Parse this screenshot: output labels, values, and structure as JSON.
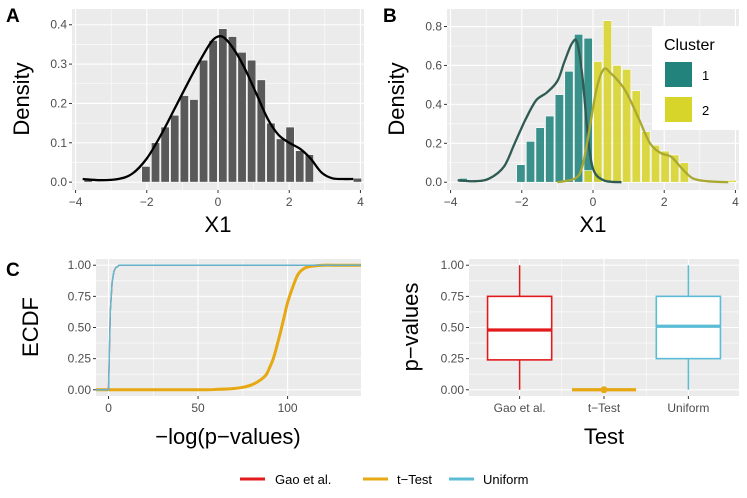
{
  "panels": {
    "A": {
      "tag": "A"
    },
    "B": {
      "tag": "B"
    },
    "C": {
      "tag": "C"
    }
  },
  "colors": {
    "grey_bar": "#595959",
    "teal": "#21837c",
    "yellow": "#d7d42a",
    "dark_teal_line": "#2f5b52",
    "olive_line": "#a9a931",
    "gao": "#e31a1c",
    "ttest": "#e6a813",
    "uniform": "#5bbcd6"
  },
  "chart_data": [
    {
      "id": "A",
      "type": "bar",
      "xlabel": "X1",
      "ylabel": "Density",
      "xlim": [
        -4.1,
        4.1
      ],
      "ylim": [
        -0.02,
        0.44
      ],
      "xticks": [
        -4,
        -2,
        0,
        2,
        4
      ],
      "xtick_labels": [
        "−4",
        "−2",
        "0",
        "2",
        "4"
      ],
      "yticks": [
        0.0,
        0.1,
        0.2,
        0.3,
        0.4
      ],
      "ytick_labels": [
        "0.0",
        "0.1",
        "0.2",
        "0.3",
        "0.4"
      ],
      "bin_width": 0.27,
      "bins": [
        -3.78,
        -2.16,
        -1.89,
        -1.62,
        -1.35,
        -1.08,
        -0.81,
        -0.54,
        -0.27,
        0.0,
        0.27,
        0.54,
        0.81,
        1.08,
        1.35,
        1.62,
        1.89,
        2.16,
        2.43,
        3.78
      ],
      "values": [
        0.01,
        0.04,
        0.1,
        0.14,
        0.17,
        0.22,
        0.21,
        0.31,
        0.36,
        0.39,
        0.37,
        0.33,
        0.31,
        0.26,
        0.15,
        0.11,
        0.14,
        0.08,
        0.07,
        0.01
      ],
      "density_x": [
        -3.8,
        -3.3,
        -2.8,
        -2.4,
        -2.0,
        -1.6,
        -1.2,
        -0.8,
        -0.5,
        -0.2,
        0.0,
        0.2,
        0.5,
        0.8,
        1.1,
        1.4,
        1.7,
        2.0,
        2.3,
        2.6,
        2.9,
        3.2,
        3.5,
        3.8
      ],
      "density_y": [
        0.008,
        0.005,
        0.008,
        0.022,
        0.06,
        0.12,
        0.19,
        0.26,
        0.31,
        0.355,
        0.37,
        0.365,
        0.33,
        0.28,
        0.22,
        0.16,
        0.12,
        0.1,
        0.085,
        0.06,
        0.025,
        0.01,
        0.008,
        0.008
      ]
    },
    {
      "id": "B",
      "type": "bar",
      "xlabel": "X1",
      "ylabel": "Density",
      "xlim": [
        -4.1,
        4.1
      ],
      "ylim": [
        -0.04,
        0.89
      ],
      "xticks": [
        -4,
        -2,
        0,
        2,
        4
      ],
      "xtick_labels": [
        "−4",
        "−2",
        "0",
        "2",
        "4"
      ],
      "yticks": [
        0.0,
        0.2,
        0.4,
        0.6,
        0.8
      ],
      "ytick_labels": [
        "0.0",
        "0.2",
        "0.4",
        "0.6",
        "0.8"
      ],
      "legend": {
        "title": "Cluster",
        "entries": [
          "1",
          "2"
        ],
        "position": "right"
      },
      "series": [
        {
          "name": "1",
          "bin_width": 0.27,
          "bins": [
            -3.78,
            -2.16,
            -1.89,
            -1.62,
            -1.35,
            -1.08,
            -0.81,
            -0.54,
            -0.27,
            0.0
          ],
          "values": [
            0.02,
            0.09,
            0.21,
            0.28,
            0.34,
            0.45,
            0.57,
            0.76,
            0.74,
            0.05
          ],
          "density_x": [
            -3.8,
            -3.3,
            -2.9,
            -2.5,
            -2.2,
            -1.9,
            -1.6,
            -1.3,
            -1.0,
            -0.8,
            -0.6,
            -0.45,
            -0.3,
            -0.15,
            0.0,
            0.3,
            0.8
          ],
          "density_y": [
            0.01,
            0.005,
            0.02,
            0.08,
            0.2,
            0.32,
            0.42,
            0.46,
            0.52,
            0.62,
            0.71,
            0.72,
            0.55,
            0.25,
            0.07,
            0.01,
            0.0
          ]
        },
        {
          "name": "2",
          "bin_width": 0.27,
          "bins": [
            -0.27,
            0.0,
            0.27,
            0.54,
            0.81,
            1.08,
            1.35,
            1.62,
            1.89,
            2.16,
            2.43,
            3.78
          ],
          "values": [
            0.06,
            0.62,
            0.83,
            0.6,
            0.58,
            0.47,
            0.26,
            0.19,
            0.16,
            0.14,
            0.1,
            0.01
          ],
          "density_x": [
            -1.0,
            -0.5,
            -0.3,
            -0.1,
            0.1,
            0.3,
            0.5,
            0.8,
            1.0,
            1.3,
            1.6,
            1.9,
            2.2,
            2.5,
            2.8,
            3.2,
            3.8
          ],
          "density_y": [
            0.0,
            0.02,
            0.08,
            0.27,
            0.48,
            0.58,
            0.56,
            0.5,
            0.44,
            0.32,
            0.2,
            0.15,
            0.13,
            0.07,
            0.02,
            0.005,
            0.0
          ]
        }
      ]
    },
    {
      "id": "C",
      "type": "line",
      "xlabel": "−log(p−values)",
      "ylabel": "ECDF",
      "xlim": [
        -7,
        141
      ],
      "ylim": [
        -0.05,
        1.05
      ],
      "xticks": [
        0,
        50,
        100
      ],
      "xtick_labels": [
        "0",
        "50",
        "100"
      ],
      "yticks": [
        0.0,
        0.25,
        0.5,
        0.75,
        1.0
      ],
      "ytick_labels": [
        "0.00",
        "0.25",
        "0.50",
        "0.75",
        "1.00"
      ],
      "series": [
        {
          "name": "Gao et al.",
          "x": [
            -7,
            0,
            1,
            2,
            3,
            4,
            5,
            6,
            8,
            141
          ],
          "y": [
            0,
            0,
            0.63,
            0.86,
            0.95,
            0.98,
            0.99,
            1.0,
            1.0,
            1.0
          ]
        },
        {
          "name": "Uniform",
          "x": [
            -7,
            0,
            1,
            2,
            3,
            4,
            5,
            6,
            8,
            141
          ],
          "y": [
            0,
            0,
            0.63,
            0.86,
            0.95,
            0.98,
            0.99,
            1.0,
            1.0,
            1.0
          ]
        },
        {
          "name": "t−Test",
          "x": [
            -7,
            50,
            60,
            70,
            75,
            80,
            85,
            88,
            90,
            92,
            94,
            96,
            98,
            100,
            103,
            106,
            110,
            115,
            120,
            125,
            141
          ],
          "y": [
            0.0,
            0.0,
            0.003,
            0.01,
            0.02,
            0.04,
            0.08,
            0.12,
            0.18,
            0.25,
            0.35,
            0.46,
            0.58,
            0.7,
            0.83,
            0.93,
            0.98,
            0.995,
            1.0,
            1.0,
            1.0
          ]
        }
      ]
    },
    {
      "id": "D",
      "type": "box",
      "xlabel": "Test",
      "ylabel": "p−values",
      "ylim": [
        -0.05,
        1.05
      ],
      "yticks": [
        0.0,
        0.25,
        0.5,
        0.75,
        1.0
      ],
      "ytick_labels": [
        "0.00",
        "0.25",
        "0.50",
        "0.75",
        "1.00"
      ],
      "categories": [
        "Gao et al.",
        "t−Test",
        "Uniform"
      ],
      "boxes": [
        {
          "name": "Gao et al.",
          "min": 0.0,
          "q1": 0.24,
          "median": 0.48,
          "q3": 0.75,
          "max": 1.0
        },
        {
          "name": "t−Test",
          "min": 0.0,
          "q1": 0.0,
          "median": 0.0,
          "q3": 0.0,
          "max": 0.0,
          "outlier": 0.0
        },
        {
          "name": "Uniform",
          "min": 0.0,
          "q1": 0.25,
          "median": 0.51,
          "q3": 0.75,
          "max": 1.0
        }
      ]
    }
  ],
  "legend": {
    "entries": [
      "Gao et al.",
      "t−Test",
      "Uniform"
    ]
  }
}
